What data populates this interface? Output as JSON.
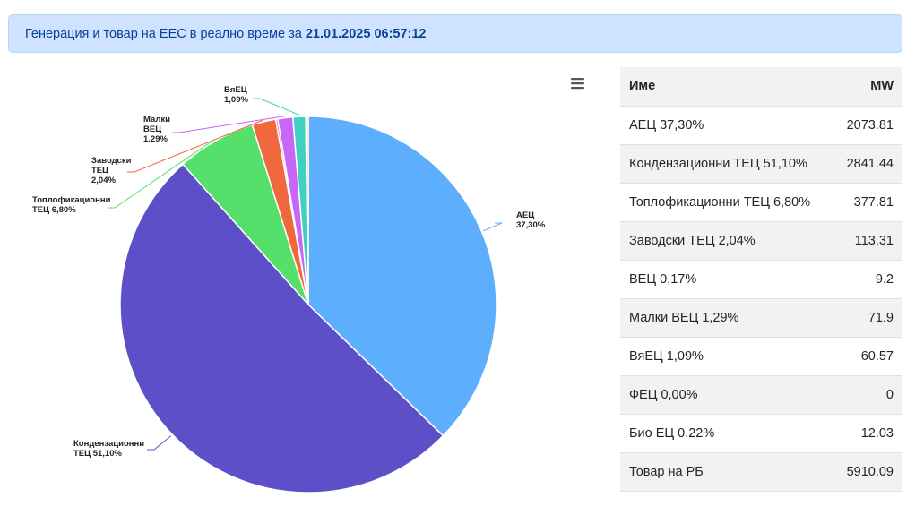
{
  "banner": {
    "text": "Генерация и товар на ЕЕС в реално време за",
    "timestamp": "21.01.2025 06:57:12"
  },
  "chart_menu_icon": "hamburger-menu-icon",
  "chart_data": {
    "type": "pie",
    "slices": [
      {
        "label": [
          "АЕЦ",
          "37,30%"
        ],
        "value": 37.3,
        "color": "#5eaefe"
      },
      {
        "label": [
          "Кондензационни",
          "ТЕЦ 51,10%"
        ],
        "value": 51.1,
        "color": "#5c4fc8"
      },
      {
        "label": [
          "Топлофикационни",
          "ТЕЦ 6,80%"
        ],
        "value": 6.8,
        "color": "#55e06b"
      },
      {
        "label": [
          "Заводски",
          "ТЕЦ",
          "2,04%"
        ],
        "value": 2.04,
        "color": "#f0683e"
      },
      {
        "label": [],
        "value": 0.17,
        "color": "#e34f9a"
      },
      {
        "label": [
          "Малки",
          "ВЕЦ",
          "1.29%"
        ],
        "value": 1.29,
        "color": "#c866f5"
      },
      {
        "label": [
          "ВяЕЦ",
          "1,09%"
        ],
        "value": 1.09,
        "color": "#3fd0c2"
      },
      {
        "label": [],
        "value": 0.0,
        "color": "#f5c33a"
      },
      {
        "label": [],
        "value": 0.22,
        "color": "#f4a533"
      }
    ]
  },
  "table": {
    "headers": [
      "Име",
      "MW"
    ],
    "rows": [
      {
        "name": "АЕЦ 37,30%",
        "mw": "2073.81"
      },
      {
        "name": "Кондензационни ТЕЦ 51,10%",
        "mw": "2841.44"
      },
      {
        "name": "Топлофикационни ТЕЦ 6,80%",
        "mw": "377.81"
      },
      {
        "name": "Заводски ТЕЦ 2,04%",
        "mw": "113.31"
      },
      {
        "name": "ВЕЦ 0,17%",
        "mw": "9.2"
      },
      {
        "name": "Малки ВЕЦ 1,29%",
        "mw": "71.9"
      },
      {
        "name": "ВяЕЦ 1,09%",
        "mw": "60.57"
      },
      {
        "name": "ФЕЦ 0,00%",
        "mw": "0"
      },
      {
        "name": "Био ЕЦ 0,22%",
        "mw": "12.03"
      },
      {
        "name": "Товар на РБ",
        "mw": "5910.09"
      }
    ]
  }
}
